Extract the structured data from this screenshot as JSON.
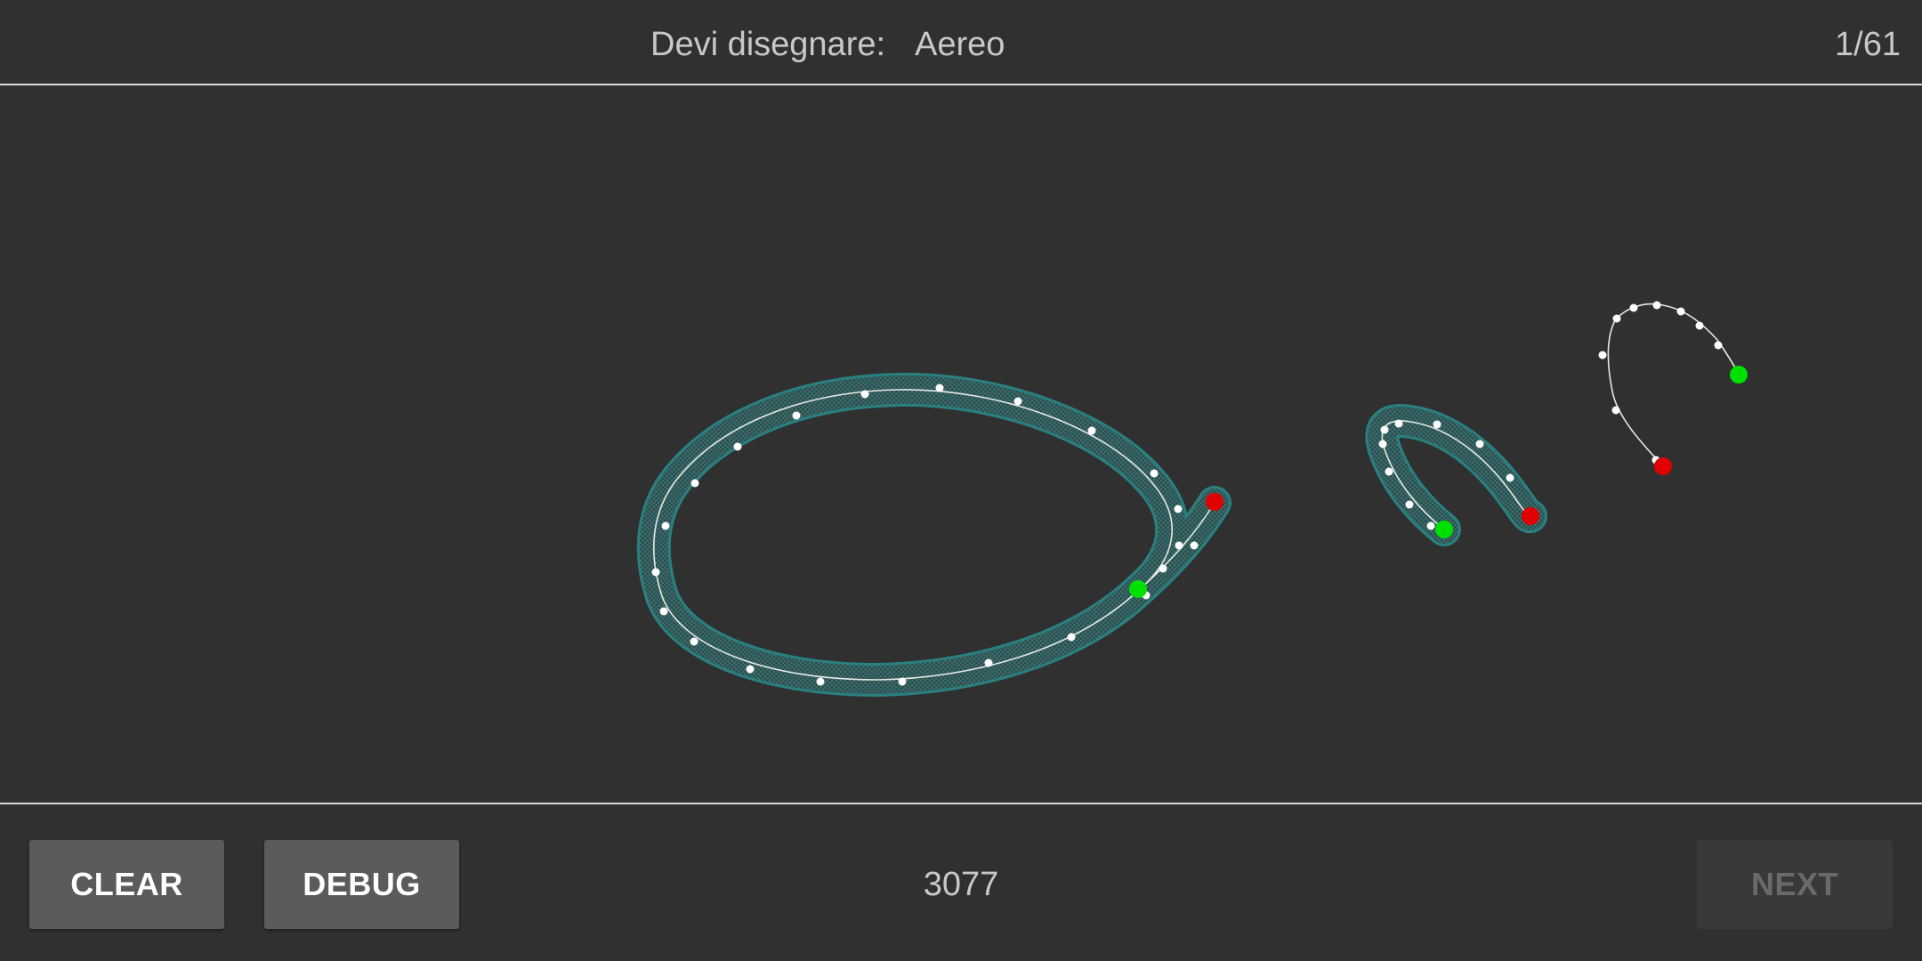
{
  "header": {
    "prompt_label": "Devi disegnare:",
    "prompt_word": "Aereo",
    "progress": "1/61"
  },
  "footer": {
    "clear_label": "CLEAR",
    "debug_label": "DEBUG",
    "score": "3077",
    "next_label": "NEXT"
  },
  "colors": {
    "background": "#303030",
    "divider": "#d8d8d8",
    "guide_band": "#2a8a8a",
    "stroke_line": "#e8e8e8",
    "point": "#ffffff",
    "start_point": "#00e000",
    "end_point": "#e00000",
    "button": "#5b5b5b",
    "button_disabled": "#393939"
  }
}
